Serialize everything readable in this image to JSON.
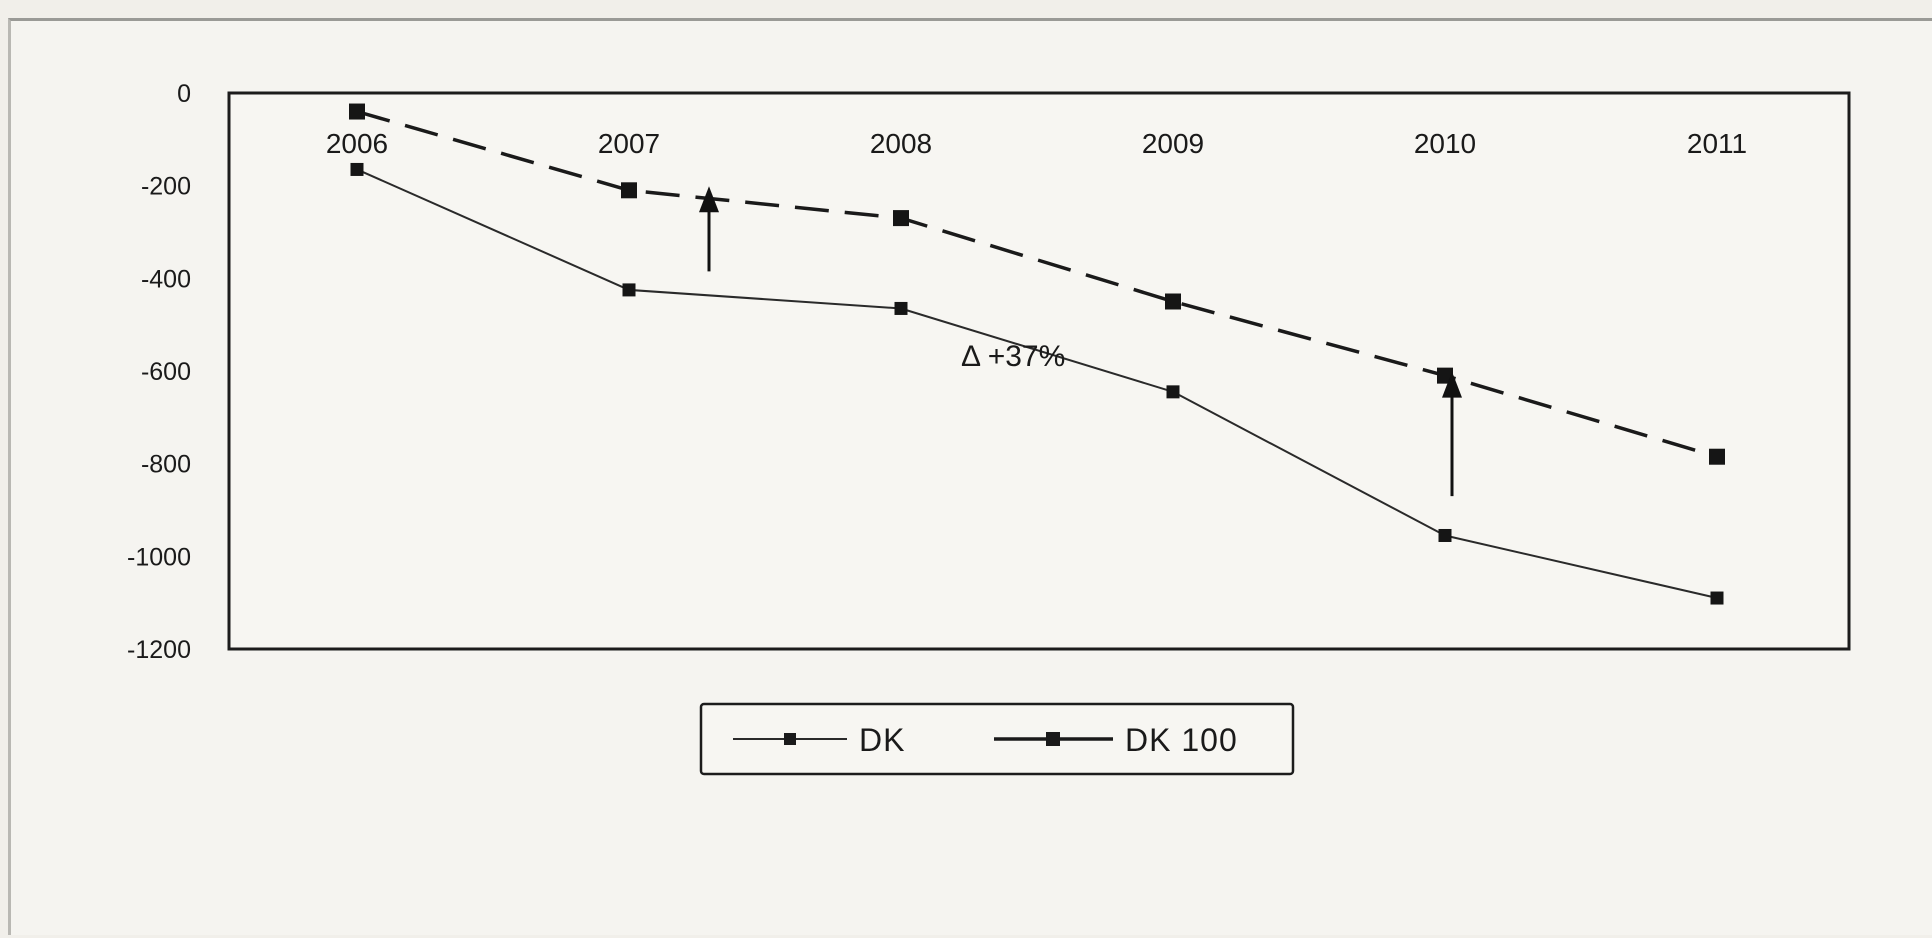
{
  "chart_data": {
    "type": "line",
    "title": "",
    "xlabel": "",
    "ylabel": "",
    "categories": [
      "2006",
      "2007",
      "2008",
      "2009",
      "2010",
      "2011"
    ],
    "x_axis_position": "top",
    "ylim": [
      -1200,
      0
    ],
    "yticks": [
      0,
      -200,
      -400,
      -600,
      -800,
      -1000,
      -1200
    ],
    "grid": false,
    "legend_position": "bottom-center",
    "series": [
      {
        "name": "DK",
        "values": [
          -165,
          -425,
          -465,
          -645,
          -955,
          -1090
        ],
        "line_style": "solid",
        "marker": "square",
        "color": "#2a2a2a"
      },
      {
        "name": "DK 100",
        "values": [
          -40,
          -210,
          -270,
          -450,
          -610,
          -785
        ],
        "line_style": "dashed",
        "marker": "square",
        "color": "#1a1a1a"
      }
    ],
    "annotations": [
      {
        "text": "Δ  +37%",
        "x": "2008"
      },
      {
        "type": "arrow",
        "at": "2007",
        "from": -385,
        "to": -210
      },
      {
        "type": "arrow",
        "at": "2010",
        "from": -870,
        "to": -610
      }
    ]
  }
}
